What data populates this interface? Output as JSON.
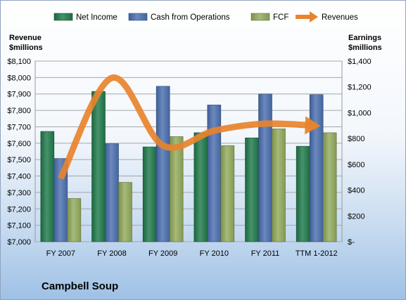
{
  "chart_data": {
    "type": "bar",
    "title": "Campbell Soup",
    "categories": [
      "FY 2007",
      "FY 2008",
      "FY 2009",
      "FY 2010",
      "FY 2011",
      "TTM 1-2012"
    ],
    "series": [
      {
        "name": "Net Income",
        "axis": "right",
        "color": "#1f7a4a",
        "values": [
          855,
          1165,
          735,
          845,
          805,
          740
        ]
      },
      {
        "name": "Cash from Operations",
        "axis": "right",
        "color": "#4a6fb0",
        "values": [
          645,
          760,
          1205,
          1060,
          1145,
          1140
        ]
      },
      {
        "name": "FCF",
        "axis": "right",
        "color": "#93ab5c",
        "values": [
          335,
          460,
          815,
          745,
          875,
          845
        ]
      },
      {
        "name": "Revenues",
        "axis": "left",
        "type": "line",
        "color": "#e8832d",
        "values": [
          7385,
          7998,
          7586,
          7676,
          7719,
          7706
        ]
      }
    ],
    "ylabel_left": "Revenue\n$millions",
    "ylabel_left_lines": [
      "Revenue",
      "$millions"
    ],
    "ylabel_right_lines": [
      "Earnings",
      "$millions"
    ],
    "ylim_left": [
      7000,
      8100
    ],
    "ylim_right": [
      0,
      1400
    ],
    "yticks_left": [
      "$7,000",
      "$7,100",
      "$7,200",
      "$7,300",
      "$7,400",
      "$7,500",
      "$7,600",
      "$7,700",
      "$7,800",
      "$7,900",
      "$8,000",
      "$8,100"
    ],
    "yticks_right": [
      "$-",
      "$200",
      "$400",
      "$600",
      "$800",
      "$1,000",
      "$1,200",
      "$1,400"
    ],
    "grid": true,
    "legend_position": "top"
  }
}
